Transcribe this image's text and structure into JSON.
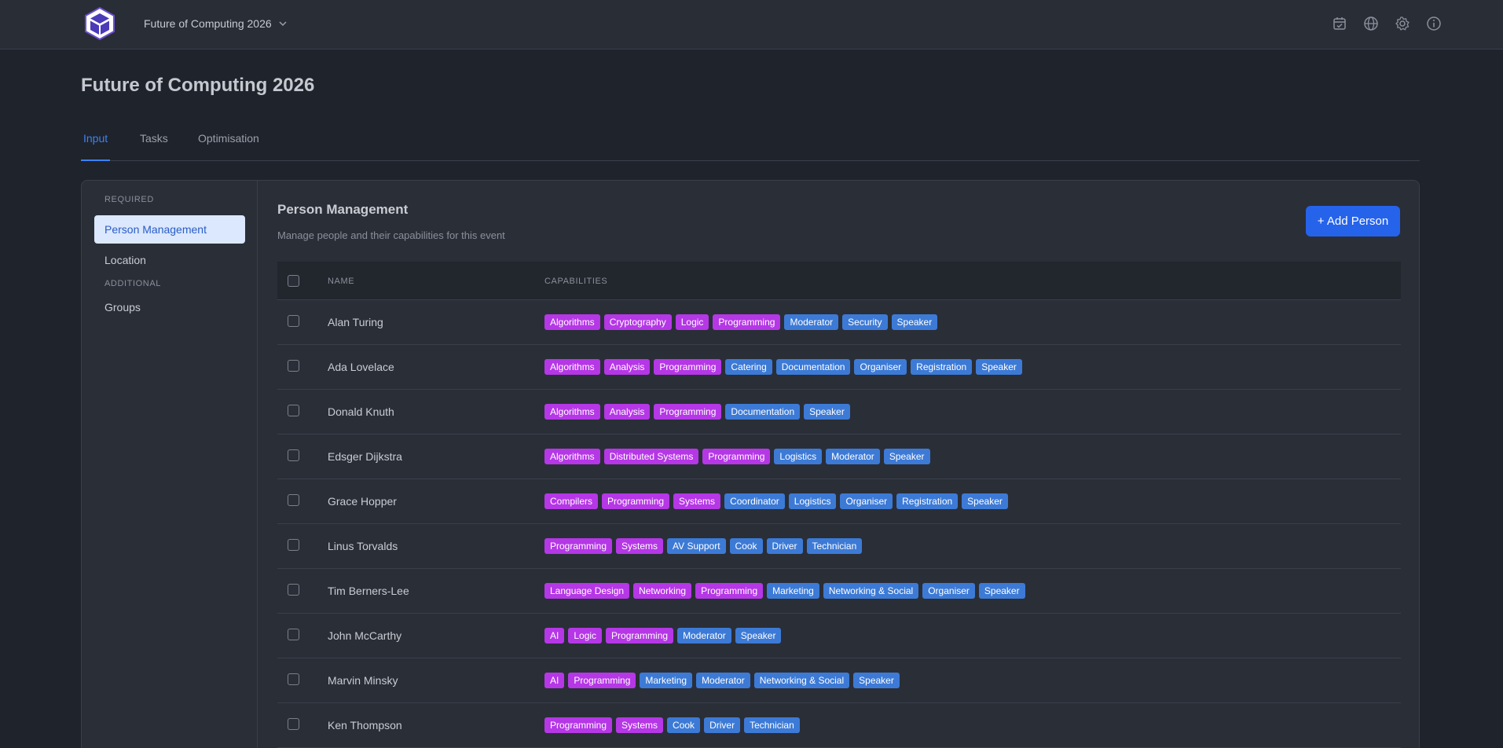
{
  "topbar": {
    "event_name": "Future of Computing 2026",
    "icons": [
      "calendar-check-icon",
      "globe-icon",
      "gear-icon",
      "info-icon"
    ]
  },
  "page": {
    "title": "Future of Computing 2026",
    "tabs": [
      "Input",
      "Tasks",
      "Optimisation"
    ],
    "active_tab": "Input"
  },
  "sidebar": {
    "groups": [
      {
        "label": "REQUIRED",
        "items": [
          "Person Management",
          "Location"
        ]
      },
      {
        "label": "ADDITIONAL",
        "items": [
          "Groups"
        ]
      }
    ],
    "active_item": "Person Management"
  },
  "section": {
    "title": "Person Management",
    "subtitle": "Manage people and their capabilities for this event",
    "add_button": "+ Add Person"
  },
  "table": {
    "columns": [
      "NAME",
      "CAPABILITIES"
    ],
    "rows": [
      {
        "name": "Alan Turing",
        "skills": [
          "Algorithms",
          "Cryptography",
          "Logic",
          "Programming"
        ],
        "roles": [
          "Moderator",
          "Security",
          "Speaker"
        ]
      },
      {
        "name": "Ada Lovelace",
        "skills": [
          "Algorithms",
          "Analysis",
          "Programming"
        ],
        "roles": [
          "Catering",
          "Documentation",
          "Organiser",
          "Registration",
          "Speaker"
        ]
      },
      {
        "name": "Donald Knuth",
        "skills": [
          "Algorithms",
          "Analysis",
          "Programming"
        ],
        "roles": [
          "Documentation",
          "Speaker"
        ]
      },
      {
        "name": "Edsger Dijkstra",
        "skills": [
          "Algorithms",
          "Distributed Systems",
          "Programming"
        ],
        "roles": [
          "Logistics",
          "Moderator",
          "Speaker"
        ]
      },
      {
        "name": "Grace Hopper",
        "skills": [
          "Compilers",
          "Programming",
          "Systems"
        ],
        "roles": [
          "Coordinator",
          "Logistics",
          "Organiser",
          "Registration",
          "Speaker"
        ]
      },
      {
        "name": "Linus Torvalds",
        "skills": [
          "Programming",
          "Systems"
        ],
        "roles": [
          "AV Support",
          "Cook",
          "Driver",
          "Technician"
        ]
      },
      {
        "name": "Tim Berners-Lee",
        "skills": [
          "Language Design",
          "Networking",
          "Programming"
        ],
        "roles": [
          "Marketing",
          "Networking & Social",
          "Organiser",
          "Speaker"
        ]
      },
      {
        "name": "John McCarthy",
        "skills": [
          "AI",
          "Logic",
          "Programming"
        ],
        "roles": [
          "Moderator",
          "Speaker"
        ]
      },
      {
        "name": "Marvin Minsky",
        "skills": [
          "AI",
          "Programming"
        ],
        "roles": [
          "Marketing",
          "Moderator",
          "Networking & Social",
          "Speaker"
        ]
      },
      {
        "name": "Ken Thompson",
        "skills": [
          "Programming",
          "Systems"
        ],
        "roles": [
          "Cook",
          "Driver",
          "Technician"
        ]
      }
    ]
  },
  "colors": {
    "accent": "#2563eb",
    "skill_tag": "#b537e6",
    "role_tag": "#3c7ad6",
    "background": "#1f232b"
  }
}
